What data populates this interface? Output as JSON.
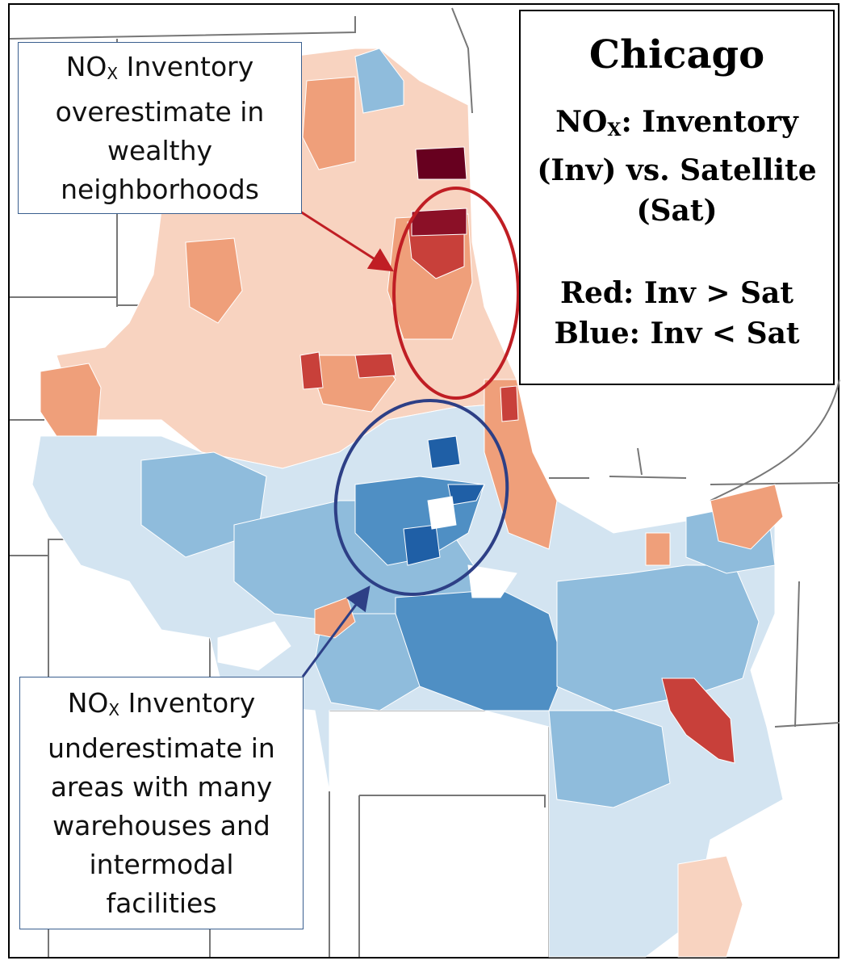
{
  "legend": {
    "city": "Chicago",
    "title_line1_prefix": "NO",
    "title_line1_sub": "X",
    "title_line1_suffix": ": Inventory",
    "title_line2": "(Inv) vs. Satellite",
    "title_line3": "(Sat)",
    "red_label": "Red: Inv > Sat",
    "blue_label": "Blue: Inv < Sat"
  },
  "callout_top": {
    "line1_prefix": "NO",
    "line1_sub": "X",
    "line1_suffix": " Inventory",
    "line2": "overestimate in",
    "line3": "wealthy",
    "line4": "neighborhoods"
  },
  "callout_bottom": {
    "line1_prefix": "NO",
    "line1_sub": "X",
    "line1_suffix": " Inventory",
    "line2": "underestimate in",
    "line3": "areas with many",
    "line4": "warehouses and",
    "line5": "intermodal",
    "line6": "facilities"
  },
  "colors": {
    "dark_red": "#67001f",
    "red": "#c8403a",
    "orange": "#ef9f7a",
    "light_orange": "#f8d3c0",
    "light_blue": "#d3e4f1",
    "mid_blue": "#8fbcdc",
    "blue": "#4f8fc4",
    "dark_blue": "#1f5fa6",
    "red_ellipse": "#c01e24",
    "blue_ellipse": "#2d3f86"
  }
}
